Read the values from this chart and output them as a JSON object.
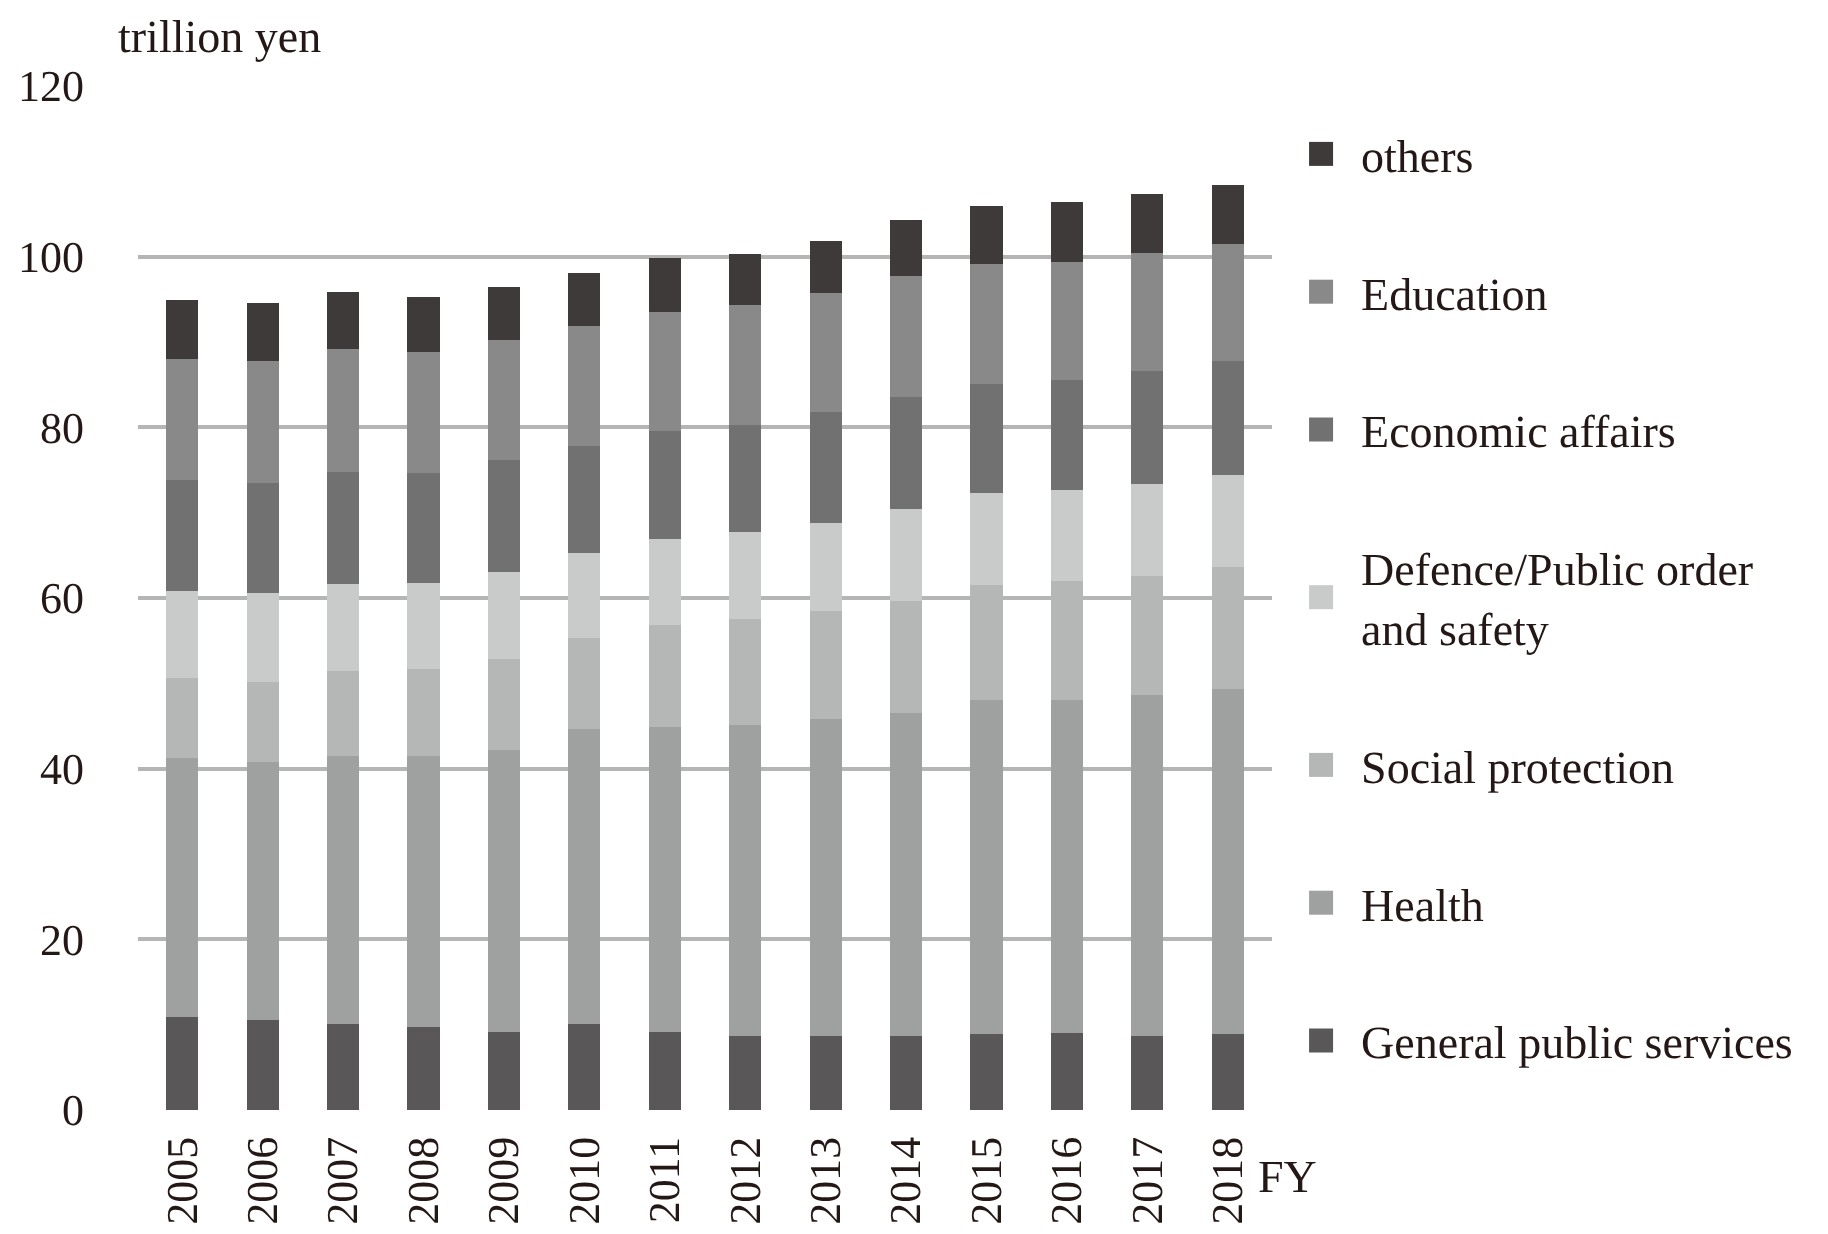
{
  "chart_data": {
    "type": "bar",
    "ylabel": "trillion yen",
    "xlabel": "FY",
    "stacked": true,
    "grid": "y",
    "legend": "right",
    "categories": [
      "2005",
      "2006",
      "2007",
      "2008",
      "2009",
      "2010",
      "2011",
      "2012",
      "2013",
      "2014",
      "2015",
      "2016",
      "2017",
      "2018"
    ],
    "ylim": [
      0,
      120
    ],
    "yticks": [
      0,
      20,
      40,
      60,
      80,
      100,
      120
    ],
    "series": [
      {
        "name": "General public services",
        "color": "#595757",
        "values": [
          10.9,
          10.6,
          10.1,
          9.7,
          9.2,
          10.1,
          9.2,
          8.7,
          8.7,
          8.7,
          8.9,
          9.0,
          8.7,
          8.9
        ]
      },
      {
        "name": "Health",
        "color": "#9fa0a0",
        "values": [
          30.4,
          30.2,
          31.4,
          31.8,
          33.0,
          34.5,
          35.7,
          36.4,
          37.1,
          37.8,
          39.2,
          39.1,
          39.9,
          40.4
        ]
      },
      {
        "name": "Social protection",
        "color": "#b5b6b6",
        "values": [
          9.3,
          9.3,
          9.9,
          10.2,
          10.6,
          10.7,
          11.9,
          12.4,
          12.7,
          13.1,
          13.4,
          13.9,
          14.0,
          14.3
        ]
      },
      {
        "name": "Defence/Public order\nand safety",
        "color": "#c9caca",
        "values": [
          10.2,
          10.5,
          10.2,
          10.1,
          10.3,
          10.0,
          10.1,
          10.2,
          10.3,
          10.8,
          10.8,
          10.6,
          10.8,
          10.8
        ]
      },
      {
        "name": "Economic affairs",
        "color": "#727171",
        "values": [
          13.0,
          12.9,
          13.2,
          12.8,
          13.1,
          12.5,
          12.7,
          12.6,
          13.0,
          13.1,
          12.8,
          13.0,
          13.2,
          13.4
        ]
      },
      {
        "name": "Education",
        "color": "#898989",
        "values": [
          14.2,
          14.3,
          14.4,
          14.2,
          14.0,
          14.1,
          13.9,
          14.0,
          14.0,
          14.2,
          14.1,
          13.8,
          13.8,
          13.7
        ]
      },
      {
        "name": "others",
        "color": "#3e3a39",
        "values": [
          6.9,
          6.8,
          6.7,
          6.5,
          6.3,
          6.2,
          6.3,
          6.0,
          6.0,
          6.6,
          6.7,
          7.0,
          7.0,
          6.9
        ]
      }
    ]
  }
}
